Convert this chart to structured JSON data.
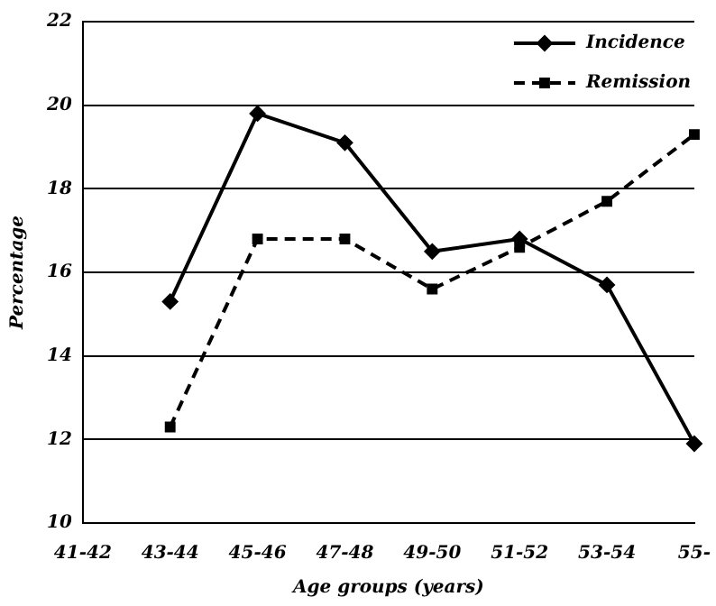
{
  "chart_data": {
    "type": "line",
    "xlabel": "Age groups (years)",
    "ylabel": "Percentage",
    "categories": [
      "41-42",
      "43-44",
      "45-46",
      "47-48",
      "49-50",
      "51-52",
      "53-54",
      "55-"
    ],
    "series": [
      {
        "name": "Incidence",
        "color": "#000000",
        "marker": "diamond",
        "line_style": "solid",
        "values": [
          null,
          15.3,
          19.8,
          19.1,
          16.5,
          16.8,
          15.7,
          11.9
        ]
      },
      {
        "name": "Remission",
        "color": "#000000",
        "marker": "square",
        "line_style": "dashed",
        "values": [
          null,
          12.3,
          16.8,
          16.8,
          15.6,
          16.6,
          17.7,
          19.3
        ]
      }
    ],
    "ylim": [
      10,
      22
    ],
    "yticks": [
      10,
      12,
      14,
      16,
      18,
      20,
      22
    ],
    "grid": "y",
    "legend": "top right"
  }
}
